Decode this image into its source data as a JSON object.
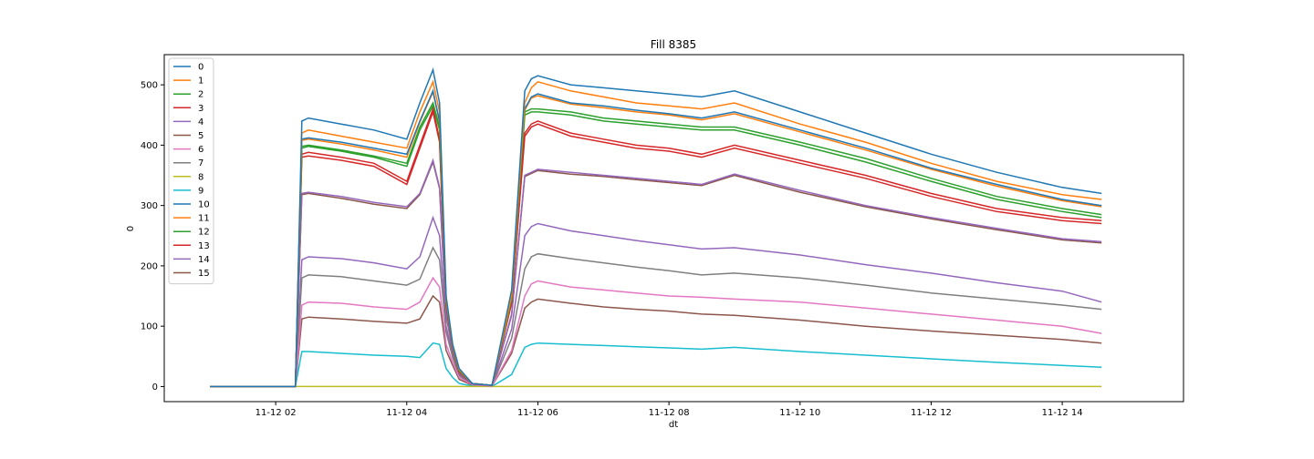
{
  "chart_data": {
    "type": "line",
    "title": "Fill 8385",
    "xlabel": "dt",
    "ylabel": "0",
    "x_ticks": [
      "11-12 02",
      "11-12 04",
      "11-12 06",
      "11-12 08",
      "11-12 10",
      "11-12 12",
      "11-12 14"
    ],
    "x_tick_hours": [
      2,
      4,
      6,
      8,
      10,
      12,
      14
    ],
    "xlim": [
      0.3,
      15.85
    ],
    "y_ticks": [
      0,
      100,
      200,
      300,
      400,
      500
    ],
    "ylim": [
      -25,
      550
    ],
    "grid": false,
    "legend_position": "top-left",
    "x": [
      1.0,
      2.3,
      2.4,
      2.5,
      3.0,
      3.5,
      4.0,
      4.2,
      4.4,
      4.5,
      4.6,
      4.7,
      4.8,
      5.0,
      5.3,
      5.6,
      5.8,
      5.9,
      6.0,
      6.5,
      7.0,
      7.5,
      8.0,
      8.5,
      9.0,
      10.0,
      11.0,
      12.0,
      13.0,
      14.0,
      14.6
    ],
    "series": [
      {
        "name": "0",
        "color": "#1f77b4",
        "values": [
          0,
          0,
          440,
          445,
          435,
          425,
          410,
          470,
          525,
          470,
          150,
          70,
          30,
          5,
          2,
          160,
          490,
          510,
          515,
          500,
          495,
          490,
          485,
          480,
          490,
          455,
          420,
          385,
          355,
          330,
          320
        ]
      },
      {
        "name": "1",
        "color": "#ff7f0e",
        "values": [
          0,
          0,
          420,
          425,
          415,
          405,
          395,
          455,
          505,
          455,
          145,
          68,
          28,
          5,
          2,
          150,
          470,
          495,
          505,
          490,
          480,
          470,
          465,
          460,
          470,
          435,
          405,
          370,
          340,
          318,
          310
        ]
      },
      {
        "name": "2",
        "color": "#2ca02c",
        "values": [
          0,
          0,
          398,
          400,
          392,
          382,
          370,
          430,
          470,
          430,
          140,
          66,
          26,
          5,
          2,
          145,
          455,
          460,
          460,
          455,
          445,
          440,
          435,
          430,
          430,
          405,
          378,
          345,
          315,
          295,
          285
        ]
      },
      {
        "name": "3",
        "color": "#d62728",
        "values": [
          0,
          0,
          385,
          388,
          380,
          370,
          340,
          400,
          460,
          410,
          135,
          64,
          24,
          5,
          2,
          140,
          420,
          435,
          440,
          420,
          410,
          400,
          395,
          385,
          400,
          375,
          350,
          320,
          295,
          280,
          275
        ]
      },
      {
        "name": "4",
        "color": "#9467bd",
        "values": [
          0,
          0,
          320,
          322,
          315,
          305,
          298,
          320,
          375,
          330,
          120,
          60,
          22,
          4,
          2,
          120,
          350,
          355,
          360,
          355,
          350,
          345,
          340,
          335,
          352,
          325,
          300,
          280,
          262,
          245,
          240
        ]
      },
      {
        "name": "5",
        "color": "#8c564b",
        "values": [
          0,
          0,
          318,
          320,
          312,
          302,
          295,
          318,
          372,
          328,
          118,
          58,
          21,
          4,
          2,
          118,
          348,
          353,
          358,
          352,
          348,
          343,
          338,
          333,
          350,
          322,
          298,
          278,
          260,
          243,
          238
        ]
      },
      {
        "name": "6",
        "color": "#e377c2",
        "values": [
          0,
          0,
          135,
          140,
          138,
          132,
          128,
          140,
          180,
          165,
          70,
          40,
          15,
          3,
          1,
          60,
          150,
          170,
          175,
          165,
          160,
          155,
          150,
          148,
          145,
          140,
          130,
          120,
          110,
          100,
          88
        ]
      },
      {
        "name": "7",
        "color": "#7f7f7f",
        "values": [
          0,
          0,
          180,
          185,
          182,
          175,
          168,
          178,
          230,
          210,
          90,
          48,
          18,
          3,
          1,
          80,
          195,
          215,
          220,
          212,
          205,
          198,
          192,
          185,
          188,
          180,
          168,
          155,
          145,
          135,
          128
        ]
      },
      {
        "name": "8",
        "color": "#bcbd22",
        "values": [
          0,
          0,
          0,
          0,
          0,
          0,
          0,
          0,
          0,
          0,
          0,
          0,
          0,
          0,
          0,
          0,
          0,
          0,
          0,
          0,
          0,
          0,
          0,
          0,
          0,
          0,
          0,
          0,
          0,
          0,
          0
        ]
      },
      {
        "name": "9",
        "color": "#17becf",
        "values": [
          0,
          0,
          58,
          58,
          55,
          52,
          50,
          48,
          72,
          70,
          30,
          15,
          5,
          1,
          0,
          20,
          65,
          70,
          72,
          70,
          68,
          66,
          64,
          62,
          65,
          58,
          52,
          46,
          40,
          35,
          32
        ]
      },
      {
        "name": "10",
        "color": "#1f77b4",
        "values": [
          0,
          0,
          410,
          412,
          405,
          395,
          385,
          440,
          490,
          440,
          140,
          66,
          26,
          5,
          2,
          148,
          460,
          480,
          485,
          470,
          465,
          458,
          452,
          445,
          455,
          425,
          395,
          362,
          335,
          310,
          300
        ]
      },
      {
        "name": "11",
        "color": "#ff7f0e",
        "values": [
          0,
          0,
          408,
          410,
          402,
          392,
          380,
          438,
          488,
          438,
          138,
          65,
          25,
          5,
          2,
          146,
          458,
          478,
          482,
          468,
          462,
          455,
          450,
          442,
          452,
          422,
          392,
          360,
          332,
          308,
          298
        ]
      },
      {
        "name": "12",
        "color": "#2ca02c",
        "values": [
          0,
          0,
          395,
          398,
          390,
          380,
          365,
          425,
          465,
          425,
          138,
          65,
          25,
          5,
          2,
          143,
          450,
          455,
          455,
          450,
          440,
          435,
          430,
          425,
          425,
          400,
          372,
          340,
          310,
          290,
          280
        ]
      },
      {
        "name": "13",
        "color": "#d62728",
        "values": [
          0,
          0,
          380,
          382,
          375,
          365,
          335,
          395,
          455,
          405,
          132,
          63,
          23,
          5,
          2,
          138,
          415,
          430,
          435,
          415,
          405,
          395,
          390,
          380,
          395,
          370,
          345,
          315,
          290,
          275,
          270
        ]
      },
      {
        "name": "14",
        "color": "#9467bd",
        "values": [
          0,
          0,
          210,
          215,
          212,
          205,
          195,
          215,
          280,
          250,
          100,
          52,
          20,
          3,
          1,
          95,
          250,
          265,
          270,
          258,
          250,
          242,
          235,
          228,
          230,
          218,
          202,
          188,
          172,
          158,
          140
        ]
      },
      {
        "name": "15",
        "color": "#8c564b",
        "values": [
          0,
          0,
          112,
          115,
          112,
          108,
          105,
          112,
          150,
          140,
          60,
          35,
          12,
          2,
          1,
          55,
          130,
          140,
          145,
          138,
          132,
          128,
          125,
          120,
          118,
          110,
          100,
          92,
          85,
          78,
          72
        ]
      }
    ]
  }
}
